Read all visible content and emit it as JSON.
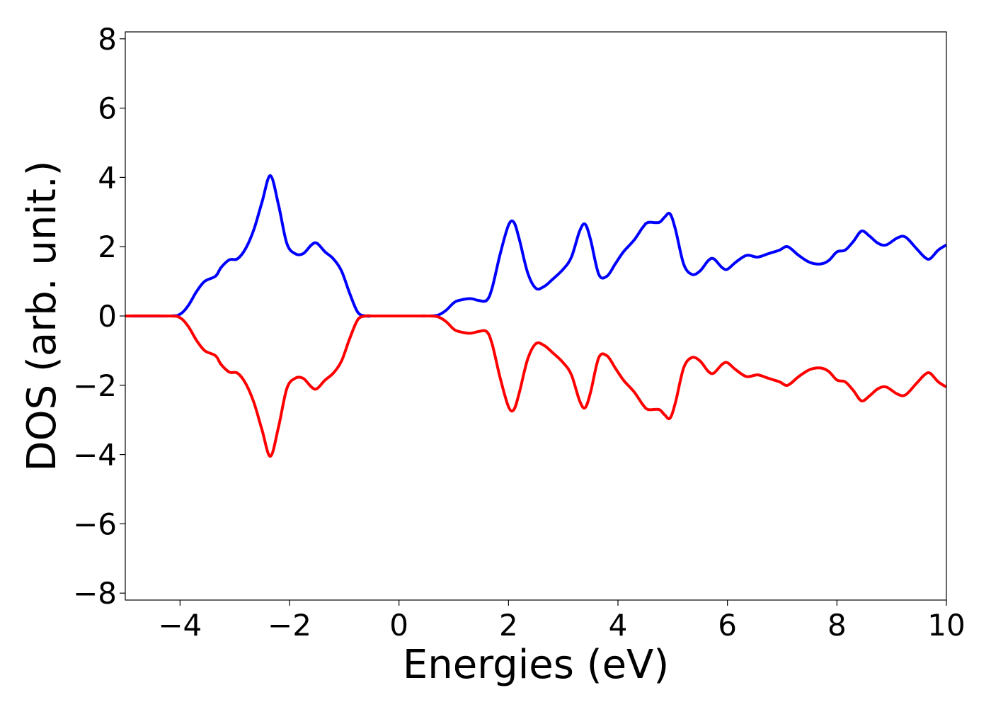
{
  "chart_data": {
    "type": "line",
    "title": "",
    "xlabel": "Energies (eV)",
    "ylabel": "DOS (arb. unit.)",
    "xlim": [
      -5,
      10
    ],
    "ylim": [
      -8.2,
      8.2
    ],
    "x_ticks": [
      -4,
      -2,
      0,
      2,
      4,
      6,
      8,
      10
    ],
    "x_tick_labels": [
      "−4",
      "−2",
      "0",
      "2",
      "4",
      "6",
      "8",
      "10"
    ],
    "y_ticks": [
      8,
      6,
      4,
      2,
      0,
      -2,
      -4,
      -6,
      -8
    ],
    "y_tick_labels": [
      "8",
      "6",
      "4",
      "2",
      "0",
      "−2",
      "−4",
      "−6",
      "−8"
    ],
    "grid": false,
    "legend": "none",
    "series": [
      {
        "color": "#0000ff",
        "x": [
          -5,
          -4.2,
          -4.0,
          -3.85,
          -3.7,
          -3.55,
          -3.35,
          -3.25,
          -3.1,
          -2.95,
          -2.8,
          -2.65,
          -2.5,
          -2.35,
          -2.2,
          -2.05,
          -1.9,
          -1.75,
          -1.6,
          -1.5,
          -1.35,
          -1.2,
          -1.05,
          -0.9,
          -0.75,
          -0.6,
          -0.5,
          -0.3,
          0,
          0.3,
          0.5,
          0.7,
          0.85,
          1.0,
          1.1,
          1.3,
          1.45,
          1.6,
          1.7,
          1.85,
          2.0,
          2.1,
          2.2,
          2.35,
          2.5,
          2.65,
          2.8,
          3.0,
          3.15,
          3.3,
          3.4,
          3.5,
          3.65,
          3.8,
          3.95,
          4.1,
          4.3,
          4.45,
          4.55,
          4.75,
          4.85,
          4.95,
          5.05,
          5.2,
          5.35,
          5.5,
          5.65,
          5.75,
          5.9,
          6.0,
          6.15,
          6.35,
          6.55,
          6.75,
          6.95,
          7.1,
          7.3,
          7.5,
          7.7,
          7.85,
          8.0,
          8.15,
          8.3,
          8.45,
          8.6,
          8.75,
          8.9,
          9.1,
          9.25,
          9.45,
          9.6,
          9.7,
          9.85,
          10.0
        ],
        "values": [
          0,
          0,
          0.05,
          0.3,
          0.7,
          1.0,
          1.15,
          1.4,
          1.62,
          1.65,
          1.95,
          2.5,
          3.3,
          4.05,
          3.2,
          2.1,
          1.8,
          1.8,
          2.05,
          2.1,
          1.85,
          1.65,
          1.3,
          0.65,
          0.1,
          0,
          0,
          0,
          0,
          0,
          0,
          0.02,
          0.15,
          0.38,
          0.45,
          0.5,
          0.45,
          0.45,
          0.8,
          1.8,
          2.62,
          2.7,
          2.2,
          1.25,
          0.8,
          0.85,
          1.05,
          1.35,
          1.7,
          2.45,
          2.65,
          2.2,
          1.2,
          1.15,
          1.5,
          1.85,
          2.2,
          2.55,
          2.7,
          2.7,
          2.85,
          2.95,
          2.5,
          1.5,
          1.2,
          1.3,
          1.6,
          1.65,
          1.4,
          1.35,
          1.55,
          1.75,
          1.7,
          1.8,
          1.9,
          2.0,
          1.75,
          1.55,
          1.5,
          1.6,
          1.85,
          1.9,
          2.15,
          2.45,
          2.3,
          2.1,
          2.05,
          2.25,
          2.28,
          1.95,
          1.7,
          1.65,
          1.9,
          2.05
        ]
      },
      {
        "color": "#ff0000",
        "x": [
          -5,
          -4.2,
          -4.0,
          -3.85,
          -3.7,
          -3.55,
          -3.35,
          -3.25,
          -3.1,
          -2.95,
          -2.8,
          -2.65,
          -2.5,
          -2.35,
          -2.2,
          -2.05,
          -1.9,
          -1.75,
          -1.6,
          -1.5,
          -1.35,
          -1.2,
          -1.05,
          -0.9,
          -0.75,
          -0.6,
          -0.5,
          -0.3,
          0,
          0.3,
          0.5,
          0.7,
          0.85,
          1.0,
          1.1,
          1.3,
          1.45,
          1.6,
          1.7,
          1.85,
          2.0,
          2.1,
          2.2,
          2.35,
          2.5,
          2.65,
          2.8,
          3.0,
          3.15,
          3.3,
          3.4,
          3.5,
          3.65,
          3.8,
          3.95,
          4.1,
          4.3,
          4.45,
          4.55,
          4.75,
          4.85,
          4.95,
          5.05,
          5.2,
          5.35,
          5.5,
          5.65,
          5.75,
          5.9,
          6.0,
          6.15,
          6.35,
          6.55,
          6.75,
          6.95,
          7.1,
          7.3,
          7.5,
          7.7,
          7.85,
          8.0,
          8.15,
          8.3,
          8.45,
          8.6,
          8.75,
          8.9,
          9.1,
          9.25,
          9.45,
          9.6,
          9.7,
          9.85,
          10.0
        ],
        "values": [
          0,
          0,
          -0.05,
          -0.3,
          -0.7,
          -1.0,
          -1.15,
          -1.4,
          -1.62,
          -1.65,
          -1.95,
          -2.5,
          -3.3,
          -4.05,
          -3.2,
          -2.1,
          -1.8,
          -1.8,
          -2.05,
          -2.1,
          -1.85,
          -1.65,
          -1.3,
          -0.65,
          -0.1,
          0,
          0,
          0,
          0,
          0,
          0,
          -0.02,
          -0.15,
          -0.38,
          -0.45,
          -0.5,
          -0.45,
          -0.45,
          -0.8,
          -1.8,
          -2.62,
          -2.7,
          -2.2,
          -1.25,
          -0.8,
          -0.85,
          -1.05,
          -1.35,
          -1.7,
          -2.45,
          -2.65,
          -2.2,
          -1.2,
          -1.15,
          -1.5,
          -1.85,
          -2.2,
          -2.55,
          -2.7,
          -2.7,
          -2.85,
          -2.95,
          -2.5,
          -1.5,
          -1.2,
          -1.3,
          -1.6,
          -1.65,
          -1.4,
          -1.35,
          -1.55,
          -1.75,
          -1.7,
          -1.8,
          -1.9,
          -2.0,
          -1.75,
          -1.55,
          -1.5,
          -1.6,
          -1.85,
          -1.9,
          -2.15,
          -2.45,
          -2.3,
          -2.1,
          -2.05,
          -2.25,
          -2.28,
          -1.95,
          -1.7,
          -1.65,
          -1.9,
          -2.05
        ]
      }
    ]
  }
}
